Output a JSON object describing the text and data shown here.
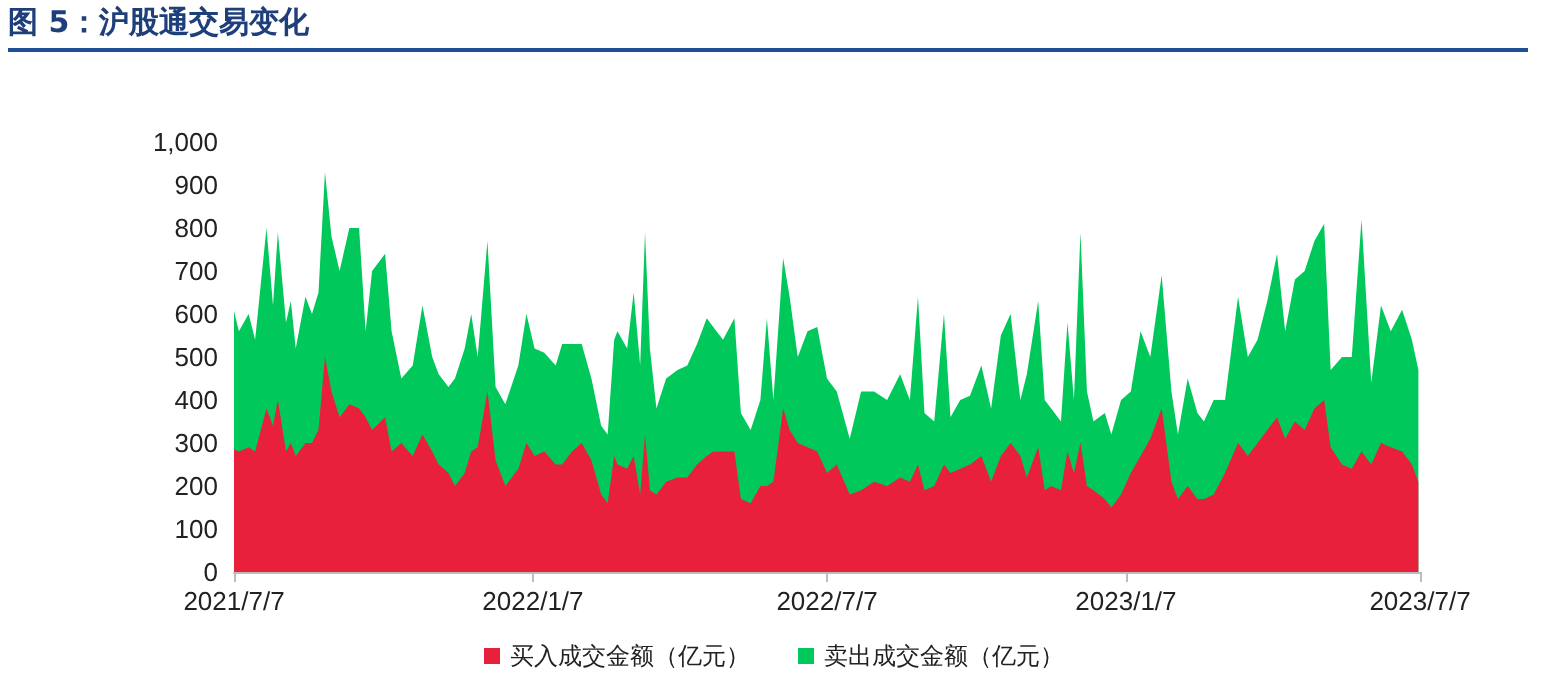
{
  "chart_data": {
    "type": "area",
    "title": "图 5：沪股通交易变化",
    "stacked": true,
    "grid": false,
    "legend": "bottom",
    "xlim": [
      "2021-07-07",
      "2023-07-07"
    ],
    "xticks": [
      {
        "value": "2021-07-07",
        "label": "2021/7/7"
      },
      {
        "value": "2022-01-07",
        "label": "2022/1/7"
      },
      {
        "value": "2022-07-07",
        "label": "2022/7/7"
      },
      {
        "value": "2023-01-07",
        "label": "2023/1/7"
      },
      {
        "value": "2023-07-07",
        "label": "2023/7/7"
      }
    ],
    "ylim": [
      0,
      1000
    ],
    "yticks": [
      0,
      100,
      200,
      300,
      400,
      500,
      600,
      700,
      800,
      900,
      {
        "value": 1000,
        "label": "1,000"
      }
    ],
    "x": [
      "2021-07-07",
      "2021-07-10",
      "2021-07-16",
      "2021-07-20",
      "2021-07-27",
      "2021-07-31",
      "2021-08-03",
      "2021-08-08",
      "2021-08-11",
      "2021-08-14",
      "2021-08-20",
      "2021-08-24",
      "2021-08-28",
      "2021-09-01",
      "2021-09-05",
      "2021-09-10",
      "2021-09-16",
      "2021-09-22",
      "2021-09-26",
      "2021-09-30",
      "2021-10-08",
      "2021-10-12",
      "2021-10-18",
      "2021-10-25",
      "2021-10-31",
      "2021-11-06",
      "2021-11-10",
      "2021-11-16",
      "2021-11-20",
      "2021-11-26",
      "2021-11-30",
      "2021-12-04",
      "2021-12-10",
      "2021-12-15",
      "2021-12-21",
      "2021-12-29",
      "2022-01-03",
      "2022-01-08",
      "2022-01-14",
      "2022-01-21",
      "2022-01-25",
      "2022-01-31",
      "2022-02-06",
      "2022-02-12",
      "2022-02-18",
      "2022-02-22",
      "2022-02-26",
      "2022-02-28",
      "2022-03-06",
      "2022-03-10",
      "2022-03-14",
      "2022-03-17",
      "2022-03-20",
      "2022-03-24",
      "2022-03-30",
      "2022-04-06",
      "2022-04-12",
      "2022-04-18",
      "2022-04-24",
      "2022-04-28",
      "2022-05-04",
      "2022-05-11",
      "2022-05-15",
      "2022-05-21",
      "2022-05-27",
      "2022-05-31",
      "2022-06-04",
      "2022-06-10",
      "2022-06-14",
      "2022-06-19",
      "2022-06-25",
      "2022-07-01",
      "2022-07-07",
      "2022-07-13",
      "2022-07-21",
      "2022-07-28",
      "2022-08-05",
      "2022-08-13",
      "2022-08-21",
      "2022-08-27",
      "2022-09-01",
      "2022-09-05",
      "2022-09-11",
      "2022-09-17",
      "2022-09-21",
      "2022-09-27",
      "2022-10-03",
      "2022-10-10",
      "2022-10-16",
      "2022-10-22",
      "2022-10-28",
      "2022-11-03",
      "2022-11-07",
      "2022-11-14",
      "2022-11-18",
      "2022-11-22",
      "2022-11-28",
      "2022-12-02",
      "2022-12-06",
      "2022-12-10",
      "2022-12-14",
      "2022-12-18",
      "2022-12-25",
      "2022-12-29",
      "2023-01-04",
      "2023-01-10",
      "2023-01-16",
      "2023-01-22",
      "2023-01-29",
      "2023-02-04",
      "2023-02-08",
      "2023-02-14",
      "2023-02-20",
      "2023-02-24",
      "2023-03-02",
      "2023-03-09",
      "2023-03-17",
      "2023-03-23",
      "2023-03-29",
      "2023-04-04",
      "2023-04-10",
      "2023-04-15",
      "2023-04-21",
      "2023-04-27",
      "2023-05-03",
      "2023-05-09",
      "2023-05-13",
      "2023-05-20",
      "2023-05-26",
      "2023-06-01",
      "2023-06-07",
      "2023-06-13",
      "2023-06-19",
      "2023-06-26",
      "2023-07-02",
      "2023-07-06"
    ],
    "series": [
      {
        "name": "买入成交金额（亿元）",
        "color": "#e8203c",
        "values": [
          285,
          280,
          290,
          280,
          380,
          340,
          400,
          280,
          300,
          270,
          300,
          300,
          330,
          500,
          420,
          360,
          390,
          380,
          360,
          330,
          360,
          280,
          300,
          270,
          320,
          280,
          250,
          230,
          200,
          230,
          280,
          290,
          420,
          260,
          200,
          240,
          300,
          270,
          280,
          250,
          250,
          280,
          300,
          260,
          180,
          160,
          270,
          250,
          240,
          270,
          180,
          320,
          190,
          180,
          210,
          220,
          220,
          250,
          270,
          280,
          280,
          280,
          170,
          160,
          200,
          200,
          210,
          380,
          330,
          300,
          290,
          280,
          230,
          250,
          180,
          190,
          210,
          200,
          220,
          210,
          250,
          190,
          200,
          250,
          230,
          240,
          250,
          270,
          210,
          270,
          300,
          270,
          220,
          290,
          190,
          200,
          190,
          280,
          230,
          300,
          200,
          190,
          170,
          150,
          180,
          230,
          270,
          310,
          380,
          210,
          170,
          200,
          170,
          170,
          180,
          230,
          300,
          270,
          300,
          330,
          360,
          310,
          350,
          330,
          380,
          400,
          290,
          250,
          240,
          280,
          250,
          300,
          290,
          280,
          250,
          210
        ]
      },
      {
        "name": "卖出成交金额（亿元）",
        "color": "#00c85a",
        "values": [
          322,
          280,
          310,
          260,
          420,
          280,
          390,
          300,
          330,
          250,
          340,
          300,
          320,
          430,
          360,
          340,
          410,
          420,
          200,
          370,
          380,
          280,
          150,
          210,
          300,
          220,
          210,
          200,
          250,
          290,
          320,
          210,
          350,
          170,
          190,
          240,
          300,
          250,
          230,
          230,
          280,
          250,
          230,
          190,
          160,
          160,
          270,
          310,
          280,
          380,
          300,
          470,
          330,
          200,
          240,
          250,
          260,
          280,
          320,
          290,
          260,
          310,
          200,
          170,
          200,
          390,
          190,
          350,
          310,
          200,
          270,
          290,
          220,
          170,
          130,
          230,
          210,
          200,
          240,
          190,
          390,
          180,
          150,
          350,
          130,
          160,
          160,
          210,
          170,
          280,
          300,
          130,
          240,
          340,
          210,
          180,
          160,
          300,
          170,
          490,
          220,
          160,
          200,
          170,
          220,
          190,
          290,
          190,
          310,
          210,
          150,
          250,
          200,
          180,
          220,
          170,
          340,
          230,
          240,
          300,
          380,
          250,
          330,
          370,
          390,
          410,
          180,
          250,
          260,
          540,
          190,
          320,
          270,
          330,
          290,
          260
        ]
      }
    ]
  }
}
